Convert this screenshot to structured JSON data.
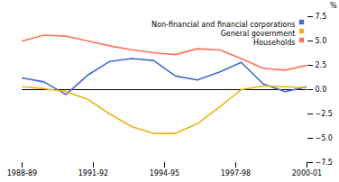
{
  "chart_data": {
    "type": "line",
    "ylabel": "%",
    "x": [
      0,
      0.923076923076923,
      1.846153846153846,
      2.769230769230769,
      3.692307692307692,
      4.615384615384615,
      5.538461538461538,
      6.461538461538462,
      7.384615384615385,
      8.307692307692308,
      9.230769230769232,
      10.153846153846153,
      11.076923076923077,
      12
    ],
    "xlim": [
      0,
      12
    ],
    "xticks": [
      {
        "value": 0,
        "label": "1988-89"
      },
      {
        "value": 3,
        "label": "1991-92"
      },
      {
        "value": 6,
        "label": "1994-95"
      },
      {
        "value": 9,
        "label": "1997-98"
      },
      {
        "value": 12,
        "label": "2000-01"
      }
    ],
    "ylim": [
      -7.5,
      7.5
    ],
    "yticks": [
      {
        "value": -7.5,
        "label": "−7.5"
      },
      {
        "value": -5.0,
        "label": "−5.0"
      },
      {
        "value": -2.5,
        "label": "−2.5"
      },
      {
        "value": 0.0,
        "label": "0.0"
      },
      {
        "value": 2.5,
        "label": "2.5"
      },
      {
        "value": 5.0,
        "label": "5.0"
      },
      {
        "value": 7.5,
        "label": "7.5"
      }
    ],
    "series": [
      {
        "name": "Non-financial and financial corporations",
        "values": [
          1.2,
          0.8,
          -0.5,
          1.5,
          2.9,
          3.2,
          3.0,
          1.4,
          1.0,
          1.8,
          2.8,
          0.6,
          -0.2,
          0.3
        ]
      },
      {
        "name": "General government",
        "values": [
          0.3,
          0.1,
          -0.2,
          -1.0,
          -2.5,
          -3.8,
          -4.5,
          -4.5,
          -3.5,
          -1.8,
          0.0,
          0.4,
          0.3,
          0.2
        ]
      },
      {
        "name": "Households",
        "values": [
          5.0,
          5.6,
          5.5,
          5.0,
          4.5,
          4.1,
          3.8,
          3.6,
          4.2,
          4.1,
          3.2,
          2.2,
          2.0,
          2.5
        ]
      }
    ],
    "legend": "upper right"
  }
}
